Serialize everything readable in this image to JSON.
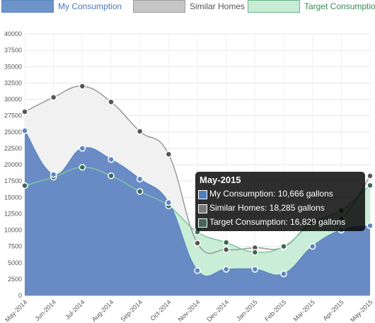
{
  "legend": {
    "items": [
      {
        "label": "My Consumption",
        "fill": "#6f95c8",
        "stroke": "#5a86c0",
        "text": "#4a78b8"
      },
      {
        "label": "Similar Homes",
        "fill": "#c6c6c6",
        "stroke": "#9c9c9c",
        "text": "#555555"
      },
      {
        "label": "Target Consumption",
        "fill": "#c8ebd5",
        "stroke": "#68b488",
        "text": "#3a8a57"
      }
    ]
  },
  "tooltip": {
    "title": "May-2015",
    "rows": [
      {
        "text": "My Consumption: 10,666 gallons",
        "color": "#4e7fc0"
      },
      {
        "text": "Similar Homes: 18,285 gallons",
        "color": "#7a7a7a"
      },
      {
        "text": "Target Consumption: 16,829 gallons",
        "color": "#42675a"
      }
    ]
  },
  "chart_data": {
    "type": "area",
    "categories": [
      "May-2014",
      "Jun-2014",
      "Jul-2014",
      "Aug-2014",
      "Sep-2014",
      "Oct-2014",
      "Nov-2014",
      "Dec-2014",
      "Jan-2015",
      "Feb-2015",
      "Mar-2015",
      "Apr-2015",
      "May-2015"
    ],
    "series": [
      {
        "name": "My Consumption",
        "values": [
          25200,
          18500,
          22500,
          20800,
          17800,
          14200,
          3800,
          4000,
          4000,
          3300,
          7500,
          10000,
          10666
        ],
        "color": "#5b87c2"
      },
      {
        "name": "Similar Homes",
        "values": [
          28100,
          30300,
          32000,
          29600,
          25100,
          21600,
          8000,
          7000,
          7300,
          7400,
          11200,
          11700,
          18285
        ],
        "color": "#9a9a9a"
      },
      {
        "name": "Target Consumption",
        "values": [
          16800,
          18100,
          19600,
          18300,
          15900,
          13700,
          9700,
          8100,
          6600,
          7500,
          11100,
          13000,
          16829
        ],
        "color": "#5a9e94"
      }
    ],
    "ylim": [
      0,
      40000
    ],
    "yticks": [
      "0",
      "2500",
      "5000",
      "7500",
      "10000",
      "12500",
      "15000",
      "17500",
      "20000",
      "22500",
      "25000",
      "27500",
      "30000",
      "32500",
      "35000",
      "37500",
      "40000"
    ],
    "grid": true,
    "legend_position": "top"
  }
}
